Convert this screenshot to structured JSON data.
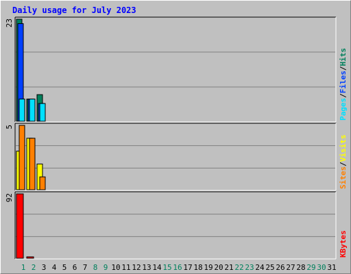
{
  "title": "Daily usage for July 2023",
  "colors": {
    "hits": "#00805c",
    "files": "#0040ff",
    "pages": "#00e0ff",
    "visits": "#ffff00",
    "sites": "#ff8000",
    "kbytes": "#ff0000",
    "weekend": "#00805c",
    "weekday": "#000000",
    "title": "#0000ff"
  },
  "chart_data": [
    {
      "type": "bar",
      "panel": "hits-files-pages",
      "ymax_label": "23",
      "ylim": [
        0,
        23
      ],
      "legend": [
        {
          "label": "Pages",
          "color": "#00e0ff"
        },
        {
          "label": "/",
          "color": "#000000"
        },
        {
          "label": "Files",
          "color": "#0040ff"
        },
        {
          "label": "/",
          "color": "#000000"
        },
        {
          "label": "Hits",
          "color": "#00805c"
        }
      ],
      "x": [
        1,
        2,
        3
      ],
      "series": [
        {
          "name": "Hits",
          "color": "#00805c",
          "values": [
            23,
            5,
            6
          ]
        },
        {
          "name": "Files",
          "color": "#0040ff",
          "values": [
            22,
            5,
            4
          ]
        },
        {
          "name": "Pages",
          "color": "#00e0ff",
          "values": [
            5,
            5,
            4
          ]
        }
      ]
    },
    {
      "type": "bar",
      "panel": "visits-sites",
      "ymax_label": "5",
      "ylim": [
        0,
        5
      ],
      "legend": [
        {
          "label": "Sites",
          "color": "#ff8000"
        },
        {
          "label": "/",
          "color": "#000000"
        },
        {
          "label": "Visits",
          "color": "#ffff00"
        }
      ],
      "x": [
        1,
        2,
        3
      ],
      "series": [
        {
          "name": "Visits",
          "color": "#ffff00",
          "values": [
            3,
            4,
            2
          ]
        },
        {
          "name": "Sites",
          "color": "#ff8000",
          "values": [
            5,
            4,
            1
          ]
        }
      ]
    },
    {
      "type": "bar",
      "panel": "kbytes",
      "ymax_label": "92",
      "ylim": [
        0,
        92
      ],
      "legend": [
        {
          "label": "KBytes",
          "color": "#ff0000"
        }
      ],
      "x": [
        1,
        2,
        3
      ],
      "series": [
        {
          "name": "KBytes",
          "color": "#ff0000",
          "values": [
            92,
            2,
            0
          ]
        }
      ]
    }
  ],
  "days": [
    {
      "label": "1",
      "weekend": true
    },
    {
      "label": "2",
      "weekend": true
    },
    {
      "label": "3",
      "weekend": false
    },
    {
      "label": "4",
      "weekend": false
    },
    {
      "label": "5",
      "weekend": false
    },
    {
      "label": "6",
      "weekend": false
    },
    {
      "label": "7",
      "weekend": false
    },
    {
      "label": "8",
      "weekend": true
    },
    {
      "label": "9",
      "weekend": true
    },
    {
      "label": "10",
      "weekend": false
    },
    {
      "label": "11",
      "weekend": false
    },
    {
      "label": "12",
      "weekend": false
    },
    {
      "label": "13",
      "weekend": false
    },
    {
      "label": "14",
      "weekend": false
    },
    {
      "label": "15",
      "weekend": true
    },
    {
      "label": "16",
      "weekend": true
    },
    {
      "label": "17",
      "weekend": false
    },
    {
      "label": "18",
      "weekend": false
    },
    {
      "label": "19",
      "weekend": false
    },
    {
      "label": "20",
      "weekend": false
    },
    {
      "label": "21",
      "weekend": false
    },
    {
      "label": "22",
      "weekend": true
    },
    {
      "label": "23",
      "weekend": true
    },
    {
      "label": "24",
      "weekend": false
    },
    {
      "label": "25",
      "weekend": false
    },
    {
      "label": "26",
      "weekend": false
    },
    {
      "label": "27",
      "weekend": false
    },
    {
      "label": "28",
      "weekend": false
    },
    {
      "label": "29",
      "weekend": true
    },
    {
      "label": "30",
      "weekend": true
    },
    {
      "label": "31",
      "weekend": false
    }
  ]
}
